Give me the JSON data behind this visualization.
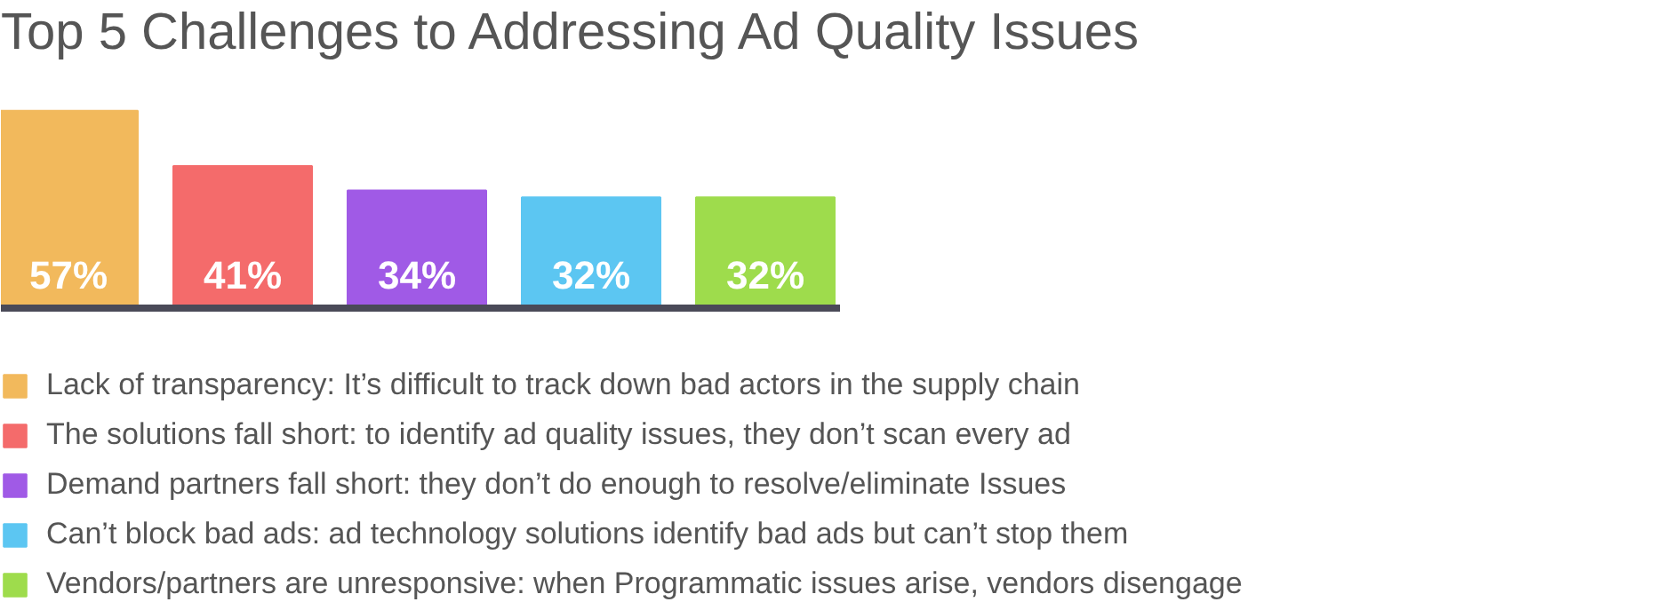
{
  "chart_data": {
    "type": "bar",
    "title": "Top 5 Challenges to Addressing Ad Quality Issues",
    "categories": [
      null,
      null,
      null,
      null,
      null
    ],
    "series": [
      {
        "name": "Lack of transparency: It’s difficult to track down bad actors in the supply chain",
        "color": "#f2b95c",
        "values": [
          57,
          null,
          null,
          null,
          null
        ],
        "value_labels": [
          "57%",
          null,
          null,
          null,
          null
        ]
      },
      {
        "name": "The solutions fall short: to identify ad quality issues, they don’t scan every ad",
        "color": "#f46b6b",
        "values": [
          null,
          41,
          null,
          null,
          null
        ],
        "value_labels": [
          null,
          "41%",
          null,
          null,
          null
        ]
      },
      {
        "name": "Demand partners fall short: they don’t do enough to resolve/eliminate Issues",
        "color": "#a05ae6",
        "values": [
          null,
          null,
          34,
          null,
          null
        ],
        "value_labels": [
          null,
          null,
          "34%",
          null,
          null
        ]
      },
      {
        "name": "Can’t block bad ads: ad technology solutions identify bad ads but can’t stop them",
        "color": "#5cc6f2",
        "values": [
          null,
          null,
          null,
          32,
          null
        ],
        "value_labels": [
          null,
          null,
          null,
          "32%",
          null
        ]
      },
      {
        "name": "Vendors/partners are unresponsive: when Programmatic issues arise, vendors disengage",
        "color": "#9edc4c",
        "values": [
          null,
          null,
          null,
          null,
          32
        ],
        "value_labels": [
          null,
          null,
          null,
          null,
          "32%"
        ]
      }
    ],
    "stacked": true,
    "legend": "bottom",
    "tick_labels": false
  }
}
